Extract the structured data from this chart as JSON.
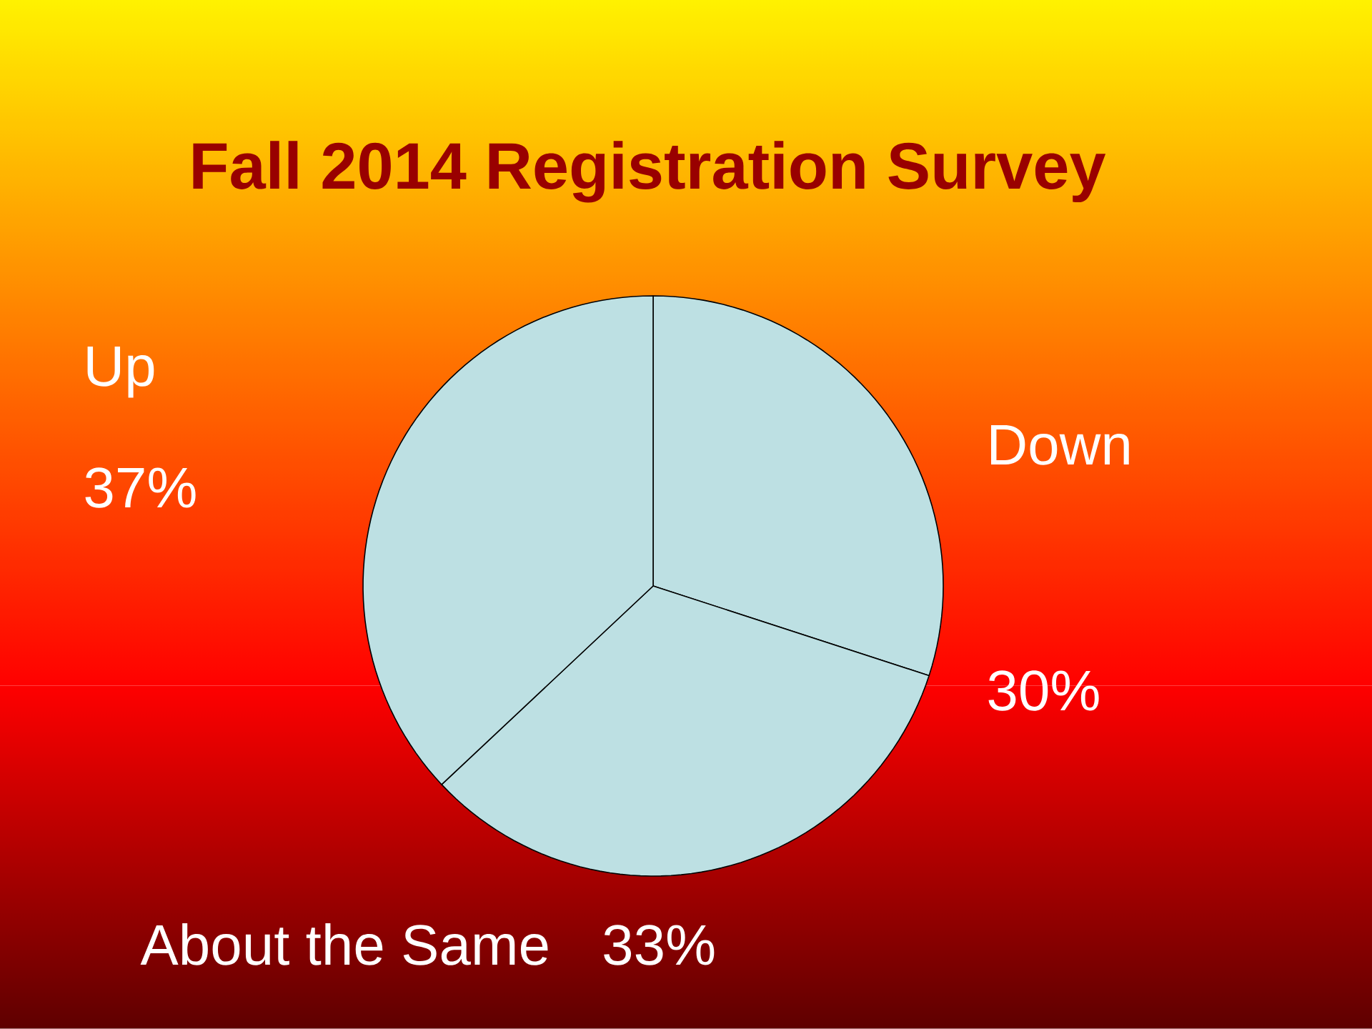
{
  "chart_data": {
    "type": "pie",
    "title": "Fall 2014 Registration Survey",
    "categories": [
      "Down",
      "About the Same",
      "Up"
    ],
    "values": [
      30,
      33,
      37
    ],
    "value_labels": [
      "30%",
      "33%",
      "37%"
    ],
    "colors": [
      "#bde0e3",
      "#bde0e3",
      "#bde0e3"
    ]
  }
}
